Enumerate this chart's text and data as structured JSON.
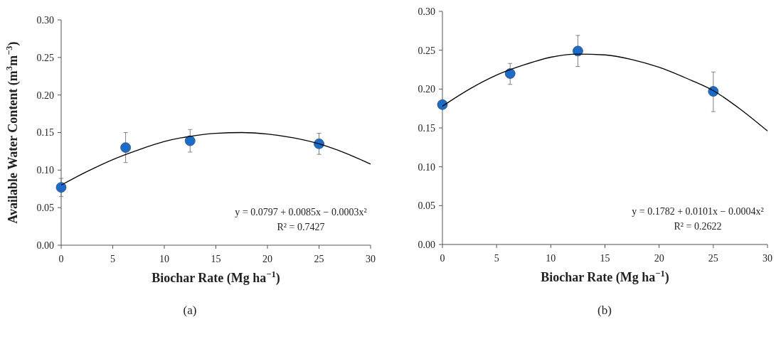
{
  "chart_data": [
    {
      "type": "scatter",
      "xlabel": "Biochar Rate (Mg ha$^{−1}$)",
      "ylabel": "Available Water Content (m$^{3}$m$^{−3}$)",
      "xlim": [
        0,
        30
      ],
      "xticks": [
        0,
        5,
        10,
        15,
        20,
        25,
        30
      ],
      "ylim": [
        0,
        0.3
      ],
      "yticks": [
        {
          "value": 0,
          "label": "0.00"
        },
        {
          "value": 0.05,
          "label": "0.05"
        },
        {
          "value": 0.1,
          "label": "0.10"
        },
        {
          "value": 0.15,
          "label": "0.15"
        },
        {
          "value": 0.2,
          "label": "0.20"
        },
        {
          "value": 0.25,
          "label": "0.25"
        },
        {
          "value": 0.3,
          "label": "0.30"
        }
      ],
      "series": [
        {
          "color": "#1a6cc8",
          "marker": "circle",
          "x": [
            0,
            6.25,
            12.5,
            25
          ],
          "values": [
            0.077,
            0.13,
            0.139,
            0.135
          ],
          "errors": [
            0.012,
            0.02,
            0.015,
            0.014
          ]
        },
        {
          "type": "line",
          "color": "#000000",
          "x": [
            0,
            2.5,
            5,
            7.5,
            10,
            12.5,
            15,
            17.5,
            20,
            22.5,
            25,
            27.5,
            30
          ],
          "values": [
            0.08,
            0.098,
            0.114,
            0.127,
            0.138,
            0.145,
            0.149,
            0.15,
            0.148,
            0.143,
            0.135,
            0.123,
            0.108
          ]
        }
      ],
      "annotations": [
        "y = 0.0797 + 0.0085x − 0.0003x²",
        "R² = 0.7427",
        "(a)"
      ]
    },
    {
      "type": "scatter",
      "xlabel": "Biochar Rate (Mg ha$^{−1}$)",
      "xlim": [
        0,
        30
      ],
      "xticks": [
        0,
        5,
        10,
        15,
        20,
        25,
        30
      ],
      "ylim": [
        0,
        0.3
      ],
      "yticks": [
        {
          "value": 0,
          "label": "0.00"
        },
        {
          "value": 0.05,
          "label": "0.05"
        },
        {
          "value": 0.1,
          "label": "0.10"
        },
        {
          "value": 0.15,
          "label": "0.15"
        },
        {
          "value": 0.2,
          "label": "0.20"
        },
        {
          "value": 0.25,
          "label": "0.25"
        },
        {
          "value": 0.3,
          "label": "0.30"
        }
      ],
      "series": [
        {
          "color": "#1a6cc8",
          "marker": "circle",
          "x": [
            0,
            6.25,
            12.5,
            25
          ],
          "values": [
            0.18,
            0.22,
            0.249,
            0.197
          ],
          "errors": [
            null,
            [
              0.206,
              0.233
            ],
            [
              0.229,
              0.269
            ],
            [
              0.171,
              0.222
            ]
          ]
        },
        {
          "type": "line",
          "color": "#000000",
          "x": [
            0,
            2.5,
            5,
            7.5,
            10,
            12.5,
            15,
            17.5,
            20,
            22.5,
            25,
            27.5,
            30
          ],
          "values": [
            0.178,
            0.2,
            0.218,
            0.231,
            0.241,
            0.245,
            0.244,
            0.238,
            0.228,
            0.214,
            0.198,
            0.174,
            0.146
          ]
        }
      ],
      "annotations": [
        "y = 0.1782 + 0.0101x − 0.0004x²",
        "R² = 0.2622",
        "(b)"
      ]
    }
  ]
}
